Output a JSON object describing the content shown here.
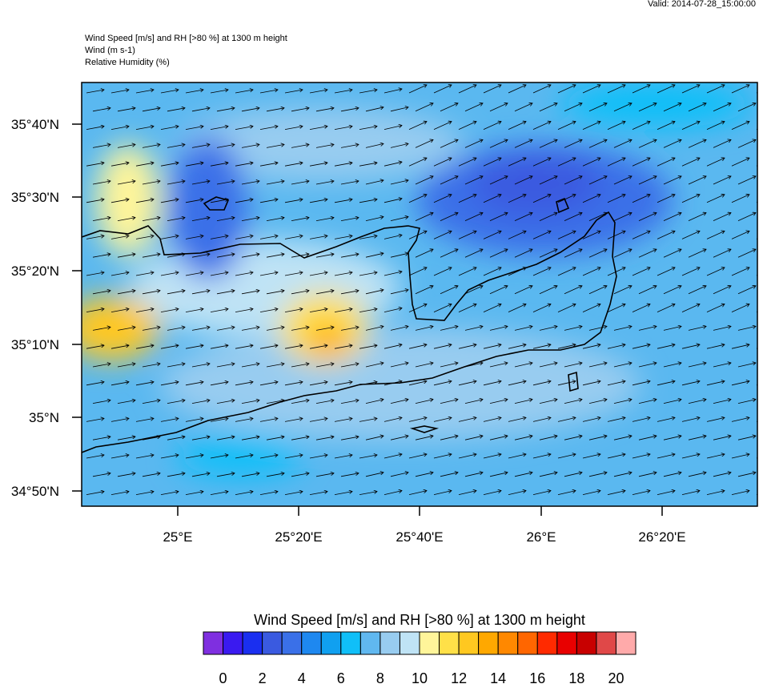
{
  "valid": "Valid: 2014-07-28_15:00:00",
  "header": [
    "Wind Speed [m/s] and RH [>80 %] at 1300 m height",
    "Wind   (m s-1)",
    "Relative Humidity   (%)"
  ],
  "lat_labels": [
    "35°40'N",
    "35°30'N",
    "35°20'N",
    "35°10'N",
    "35°N",
    "34°50'N"
  ],
  "lon_labels": [
    "25°E",
    "25°20'E",
    "25°40'E",
    "26°E",
    "26°20'E"
  ],
  "colorbar": {
    "title": "Wind Speed [m/s] and RH [>80 %] at 1300 m height",
    "colors": [
      "#7f2fe0",
      "#3a1af0",
      "#1a2ff0",
      "#3a5ae0",
      "#3a70e8",
      "#1e88f0",
      "#10a0f0",
      "#10bff8",
      "#60b8f0",
      "#98ccf0",
      "#bfe3f5",
      "#fff59a",
      "#ffe048",
      "#ffc820",
      "#ffa800",
      "#ff8800",
      "#ff6600",
      "#ff2a00",
      "#e80000",
      "#c80000",
      "#e04848",
      "#ffaaaa"
    ],
    "ticks": [
      0,
      2,
      4,
      6,
      8,
      10,
      12,
      14,
      16,
      18,
      20
    ]
  }
}
